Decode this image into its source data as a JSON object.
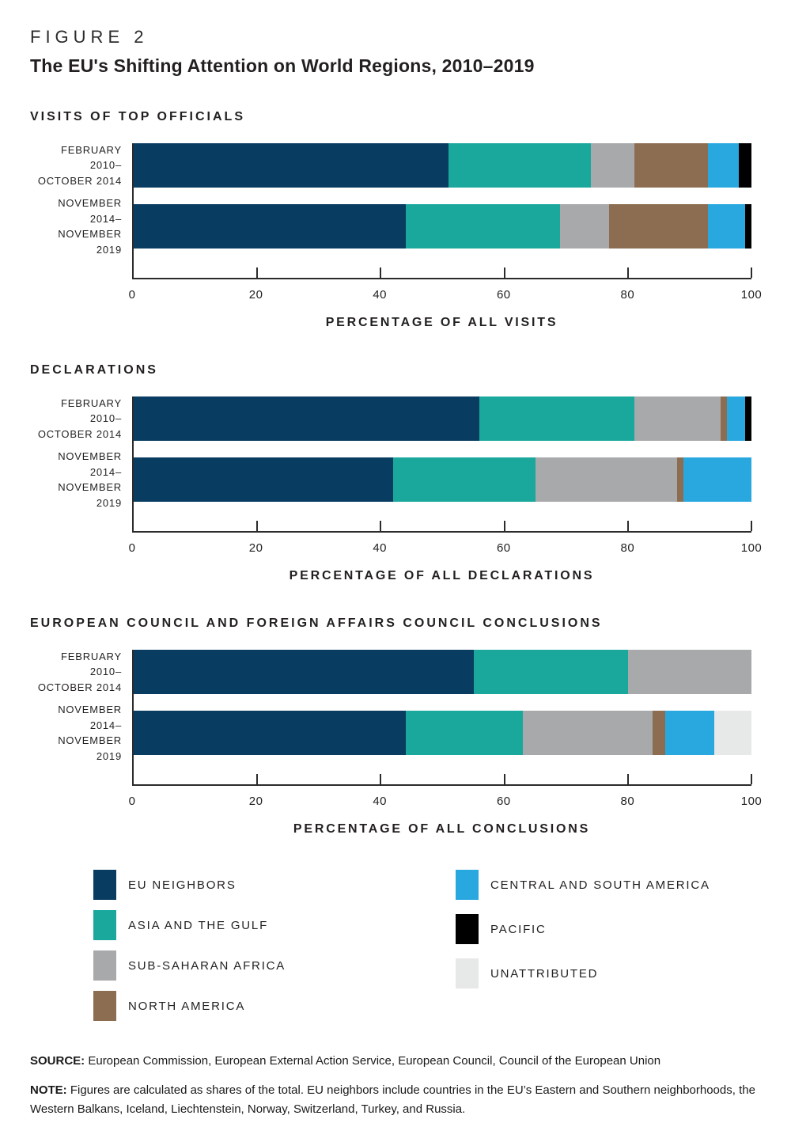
{
  "page": {
    "figure_label": "FIGURE 2",
    "title": "The EU's Shifting Attention on World Regions, 2010–2019",
    "source_label": "SOURCE:",
    "source_text": "European Commission, European External Action Service, European Council, Council of the European Union",
    "note_label": "NOTE:",
    "note_text": "Figures are calculated as shares of the total. EU neighbors include countries in the EU’s Eastern and Southern neighborhoods, the Western Balkans, Iceland, Liechtenstein, Norway, Switzerland, Turkey, and Russia."
  },
  "colors": {
    "eu_neighbors": "#083c61",
    "asia_gulf": "#1aa89d",
    "sub_saharan_africa": "#a8a9ab",
    "north_america": "#8c6d51",
    "central_south_america": "#29a8e0",
    "pacific": "#000000",
    "unattributed": "#e7e8e8",
    "axis": "#2b2b2b"
  },
  "legend": {
    "position": "bottom",
    "columns": [
      [
        {
          "key": "eu_neighbors",
          "label": "EU NEIGHBORS"
        },
        {
          "key": "asia_gulf",
          "label": "ASIA AND THE GULF"
        },
        {
          "key": "sub_saharan_africa",
          "label": "SUB-SAHARAN AFRICA"
        },
        {
          "key": "north_america",
          "label": "NORTH AMERICA"
        }
      ],
      [
        {
          "key": "central_south_america",
          "label": "CENTRAL AND SOUTH AMERICA"
        },
        {
          "key": "pacific",
          "label": "PACIFIC"
        },
        {
          "key": "unattributed",
          "label": "UNATTRIBUTED"
        }
      ]
    ]
  },
  "chart_data": [
    {
      "type": "bar",
      "stacked": true,
      "orientation": "horizontal",
      "title": "VISITS OF TOP OFFICIALS",
      "xlabel": "PERCENTAGE OF ALL VISITS",
      "xlim": [
        0,
        100
      ],
      "xticks": [
        0,
        20,
        40,
        60,
        80,
        100
      ],
      "grid": false,
      "categories": [
        "FEBRUARY 2010–\nOCTOBER 2014",
        "NOVEMBER 2014–\nNOVEMBER 2019"
      ],
      "series": [
        {
          "name": "EU NEIGHBORS",
          "key": "eu_neighbors",
          "values": [
            51,
            44
          ]
        },
        {
          "name": "ASIA AND THE GULF",
          "key": "asia_gulf",
          "values": [
            23,
            25
          ]
        },
        {
          "name": "SUB-SAHARAN AFRICA",
          "key": "sub_saharan_africa",
          "values": [
            7,
            8
          ]
        },
        {
          "name": "NORTH AMERICA",
          "key": "north_america",
          "values": [
            12,
            16
          ]
        },
        {
          "name": "CENTRAL AND SOUTH AMERICA",
          "key": "central_south_america",
          "values": [
            5,
            6
          ]
        },
        {
          "name": "PACIFIC",
          "key": "pacific",
          "values": [
            2,
            1
          ]
        },
        {
          "name": "UNATTRIBUTED",
          "key": "unattributed",
          "values": [
            0,
            0
          ]
        }
      ]
    },
    {
      "type": "bar",
      "stacked": true,
      "orientation": "horizontal",
      "title": "DECLARATIONS",
      "xlabel": "PERCENTAGE OF ALL DECLARATIONS",
      "xlim": [
        0,
        100
      ],
      "xticks": [
        0,
        20,
        40,
        60,
        80,
        100
      ],
      "grid": false,
      "categories": [
        "FEBRUARY 2010–\nOCTOBER 2014",
        "NOVEMBER 2014–\nNOVEMBER 2019"
      ],
      "series": [
        {
          "name": "EU NEIGHBORS",
          "key": "eu_neighbors",
          "values": [
            56,
            42
          ]
        },
        {
          "name": "ASIA AND THE GULF",
          "key": "asia_gulf",
          "values": [
            25,
            23
          ]
        },
        {
          "name": "SUB-SAHARAN AFRICA",
          "key": "sub_saharan_africa",
          "values": [
            14,
            23
          ]
        },
        {
          "name": "NORTH AMERICA",
          "key": "north_america",
          "values": [
            1,
            1
          ]
        },
        {
          "name": "CENTRAL AND SOUTH AMERICA",
          "key": "central_south_america",
          "values": [
            3,
            11
          ]
        },
        {
          "name": "PACIFIC",
          "key": "pacific",
          "values": [
            1,
            0
          ]
        },
        {
          "name": "UNATTRIBUTED",
          "key": "unattributed",
          "values": [
            0,
            0
          ]
        }
      ]
    },
    {
      "type": "bar",
      "stacked": true,
      "orientation": "horizontal",
      "title": "EUROPEAN COUNCIL AND FOREIGN AFFAIRS COUNCIL CONCLUSIONS",
      "xlabel": "PERCENTAGE OF ALL CONCLUSIONS",
      "xlim": [
        0,
        100
      ],
      "xticks": [
        0,
        20,
        40,
        60,
        80,
        100
      ],
      "grid": false,
      "categories": [
        "FEBRUARY 2010–\nOCTOBER 2014",
        "NOVEMBER 2014–\nNOVEMBER 2019"
      ],
      "series": [
        {
          "name": "EU NEIGHBORS",
          "key": "eu_neighbors",
          "values": [
            55,
            44
          ]
        },
        {
          "name": "ASIA AND THE GULF",
          "key": "asia_gulf",
          "values": [
            25,
            19
          ]
        },
        {
          "name": "SUB-SAHARAN AFRICA",
          "key": "sub_saharan_africa",
          "values": [
            20,
            21
          ]
        },
        {
          "name": "NORTH AMERICA",
          "key": "north_america",
          "values": [
            0,
            2
          ]
        },
        {
          "name": "CENTRAL AND SOUTH AMERICA",
          "key": "central_south_america",
          "values": [
            0,
            8
          ]
        },
        {
          "name": "PACIFIC",
          "key": "pacific",
          "values": [
            0,
            0
          ]
        },
        {
          "name": "UNATTRIBUTED",
          "key": "unattributed",
          "values": [
            0,
            6
          ]
        }
      ]
    }
  ]
}
